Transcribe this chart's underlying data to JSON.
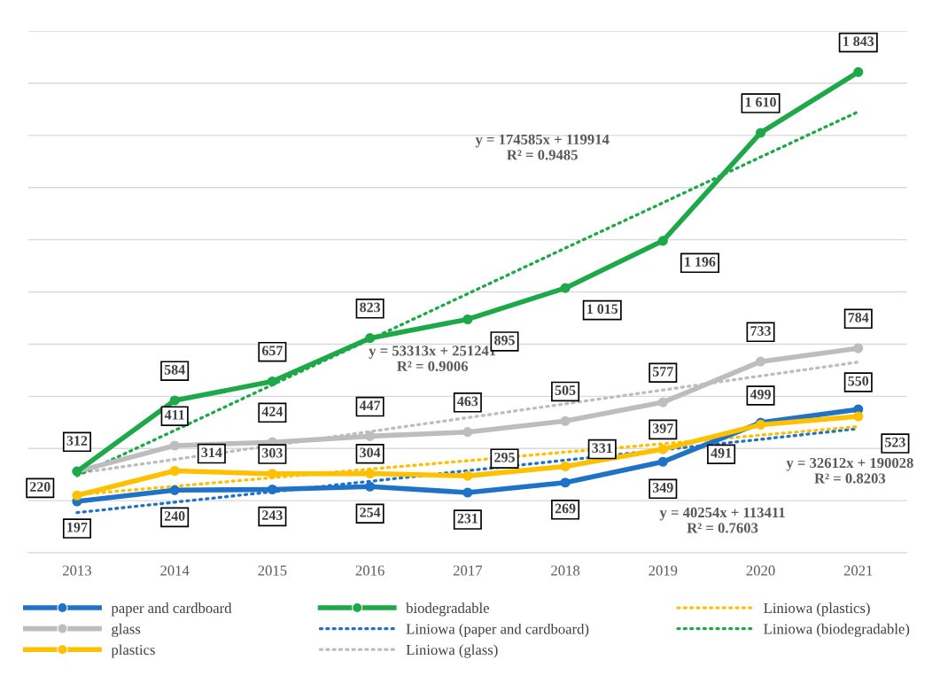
{
  "chart_data": {
    "type": "line",
    "categories": [
      "2013",
      "2014",
      "2015",
      "2016",
      "2017",
      "2018",
      "2019",
      "2020",
      "2021"
    ],
    "ylim": [
      0,
      2000
    ],
    "yticks": [
      {
        "value": 0,
        "label": null
      },
      {
        "value": 200,
        "label": null
      },
      {
        "value": 400,
        "label": null
      },
      {
        "value": 600,
        "label": null
      },
      {
        "value": 800,
        "label": null
      },
      {
        "value": 1000,
        "label": null
      },
      {
        "value": 1200,
        "label": null
      },
      {
        "value": 1400,
        "label": null
      },
      {
        "value": 1600,
        "label": null
      },
      {
        "value": 1800,
        "label": null
      },
      {
        "value": 2000,
        "label": null
      }
    ],
    "tick_labels": "x",
    "grid": "y",
    "legend": "bottom",
    "marker": "circle",
    "series": [
      {
        "name": "paper and cardboard",
        "color": "#1f72c6",
        "values": [
          197,
          240,
          243,
          254,
          231,
          269,
          349,
          499,
          550
        ],
        "value_labels": [
          "197",
          "240",
          "243",
          "254",
          "231",
          "269",
          "349",
          "499",
          "550"
        ]
      },
      {
        "name": "glass",
        "color": "#bdbdbd",
        "values": [
          312,
          411,
          424,
          447,
          463,
          505,
          577,
          733,
          784
        ],
        "value_labels": [
          null,
          "411",
          "424",
          "447",
          "463",
          "505",
          "577",
          "733",
          "784"
        ]
      },
      {
        "name": "plastics",
        "color": "#ffc000",
        "values": [
          220,
          314,
          303,
          304,
          295,
          331,
          397,
          491,
          523
        ],
        "value_labels": [
          "220",
          "314",
          "303",
          "304",
          "295",
          "331",
          "397",
          "491",
          "523"
        ]
      },
      {
        "name": "biodegradable",
        "color": "#1ea84a",
        "values": [
          312,
          584,
          657,
          823,
          895,
          1015,
          1196,
          1610,
          1843
        ],
        "value_labels": [
          "312",
          "584",
          "657",
          "823",
          "895",
          "1 015",
          "1 196",
          "1 610",
          "1 843"
        ]
      },
      {
        "name": "Liniowa (paper and cardboard)",
        "color": "#1f72c6",
        "type": "line",
        "line_style": "dotted",
        "marker": "none",
        "values": [
          154,
          194,
          234,
          274,
          315,
          355,
          395,
          435,
          476
        ]
      },
      {
        "name": "Liniowa (glass)",
        "color": "#bdbdbd",
        "type": "line",
        "line_style": "dotted",
        "marker": "none",
        "values": [
          305,
          358,
          411,
          465,
          518,
          571,
          624,
          678,
          731
        ]
      },
      {
        "name": "Liniowa (plastics)",
        "color": "#ffc000",
        "type": "line",
        "line_style": "dotted",
        "marker": "none",
        "values": [
          223,
          255,
          288,
          321,
          353,
          386,
          418,
          451,
          484
        ]
      },
      {
        "name": "Liniowa (biodegradable)",
        "color": "#1ea84a",
        "type": "line",
        "line_style": "dotted",
        "marker": "none",
        "values": [
          295,
          469,
          644,
          818,
          993,
          1168,
          1342,
          1517,
          1691
        ]
      }
    ],
    "annotations": [
      "y = 174585x + 119914\nR² = 0.9485",
      "y = 53313x + 251241\nR² = 0.9006",
      "y = 32612x + 190028\nR² = 0.8203",
      "y = 40254x + 113411\nR² = 0.7603"
    ]
  }
}
